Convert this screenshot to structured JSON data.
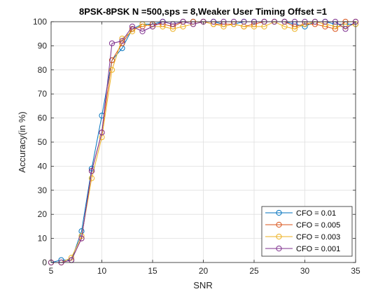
{
  "chart_data": {
    "type": "line",
    "title": "8PSK-8PSK N =500,sps = 8,Weaker User Timing Offset =1",
    "xlabel": "SNR",
    "ylabel": "Accuracy(in %)",
    "xlim": [
      5,
      35
    ],
    "ylim": [
      0,
      100
    ],
    "x_ticks": [
      5,
      10,
      15,
      20,
      25,
      30,
      35
    ],
    "y_ticks": [
      0,
      10,
      20,
      30,
      40,
      50,
      60,
      70,
      80,
      90,
      100
    ],
    "grid": true,
    "legend_position": "bottom-right",
    "x": [
      5,
      6,
      7,
      8,
      9,
      10,
      11,
      12,
      13,
      14,
      15,
      16,
      17,
      18,
      19,
      20,
      21,
      22,
      23,
      24,
      25,
      26,
      27,
      28,
      29,
      30,
      31,
      32,
      33,
      34,
      35
    ],
    "series": [
      {
        "name": "CFO = 0.01",
        "color": "#0072BD",
        "values": [
          0,
          1,
          1,
          13,
          39,
          61,
          84,
          89,
          97,
          99,
          99,
          100,
          99,
          100,
          100,
          100,
          100,
          99,
          99,
          100,
          100,
          100,
          100,
          100,
          99,
          98,
          100,
          100,
          99,
          99,
          99
        ]
      },
      {
        "name": "CFO = 0.005",
        "color": "#D95319",
        "values": [
          0,
          0,
          1,
          10,
          38,
          54,
          84,
          91,
          97,
          98,
          99,
          99,
          98,
          100,
          100,
          100,
          99,
          99,
          99,
          98,
          99,
          100,
          100,
          100,
          98,
          99,
          99,
          98,
          97,
          100,
          100
        ]
      },
      {
        "name": "CFO = 0.003",
        "color": "#EDB120",
        "values": [
          0,
          0,
          2,
          11,
          35,
          52,
          80,
          93,
          96,
          99,
          98,
          98,
          97,
          98,
          99,
          100,
          99,
          98,
          99,
          98,
          98,
          98,
          100,
          98,
          97,
          99,
          100,
          99,
          98,
          98,
          99
        ]
      },
      {
        "name": "CFO = 0.001",
        "color": "#7E2F8E",
        "values": [
          0,
          0,
          1,
          10,
          38,
          54,
          91,
          92,
          98,
          96,
          98,
          100,
          99,
          100,
          99,
          100,
          100,
          100,
          100,
          100,
          100,
          100,
          100,
          100,
          100,
          100,
          100,
          100,
          100,
          97,
          100
        ]
      }
    ]
  }
}
